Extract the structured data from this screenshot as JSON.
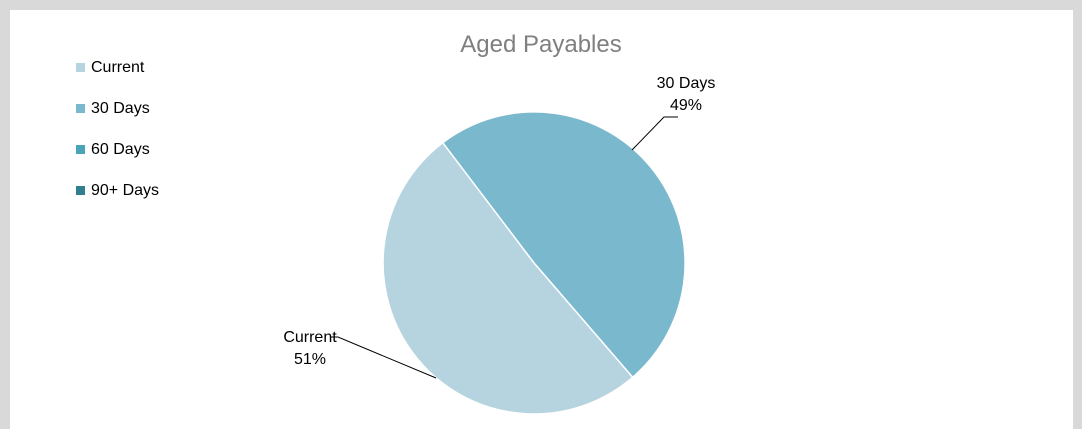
{
  "chart_data": {
    "type": "pie",
    "title": "Aged Payables",
    "categories": [
      "Current",
      "30 Days",
      "60 Days",
      "90+ Days"
    ],
    "values": [
      51,
      49,
      0,
      0
    ],
    "value_format": "percent",
    "colors": [
      "#b6d4e0",
      "#7ab8ce",
      "#4aa3b8",
      "#2f7f91"
    ],
    "legend_position": "top-left",
    "data_labels": [
      {
        "category": "Current",
        "percent": "51%"
      },
      {
        "category": "30 Days",
        "percent": "49%"
      }
    ]
  }
}
